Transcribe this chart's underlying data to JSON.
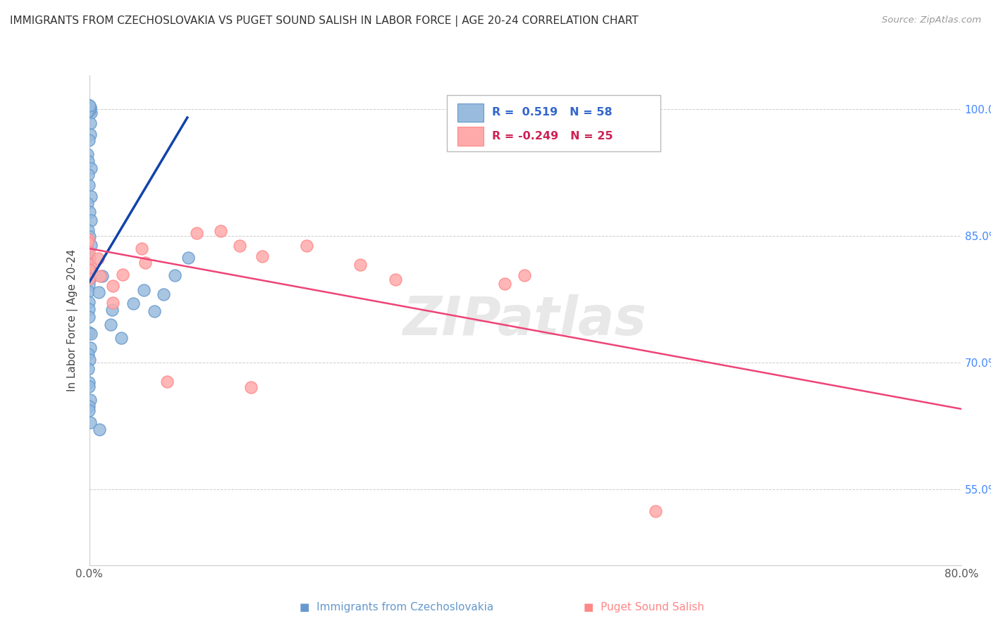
{
  "title": "IMMIGRANTS FROM CZECHOSLOVAKIA VS PUGET SOUND SALISH IN LABOR FORCE | AGE 20-24 CORRELATION CHART",
  "source": "Source: ZipAtlas.com",
  "ylabel": "In Labor Force | Age 20-24",
  "xlim": [
    0.0,
    0.8
  ],
  "ylim": [
    0.46,
    1.04
  ],
  "yticks": [
    0.55,
    0.7,
    0.85,
    1.0
  ],
  "yticklabels": [
    "55.0%",
    "70.0%",
    "85.0%",
    "100.0%"
  ],
  "blue_color": "#99BBDD",
  "pink_color": "#FFAAAA",
  "blue_edge_color": "#6699CC",
  "pink_edge_color": "#FF8888",
  "blue_line_color": "#1144AA",
  "pink_line_color": "#EE4477",
  "watermark": "ZIPatlas",
  "legend_R_blue": "R =  0.519",
  "legend_N_blue": "N = 58",
  "legend_R_pink": "R = -0.249",
  "legend_N_pink": "N = 25",
  "blue_scatter_x": [
    0.0,
    0.0,
    0.0,
    0.0,
    0.0,
    0.0,
    0.0,
    0.0,
    0.0,
    0.0,
    0.0,
    0.0,
    0.0,
    0.0,
    0.0,
    0.0,
    0.0,
    0.0,
    0.0,
    0.0,
    0.0,
    0.0,
    0.0,
    0.0,
    0.0,
    0.0,
    0.0,
    0.0,
    0.0,
    0.0,
    0.0,
    0.0,
    0.0,
    0.0,
    0.0,
    0.0,
    0.0,
    0.0,
    0.0,
    0.0,
    0.0,
    0.0,
    0.0,
    0.0,
    0.0,
    0.0,
    0.01,
    0.01,
    0.01,
    0.02,
    0.02,
    0.03,
    0.04,
    0.05,
    0.06,
    0.07,
    0.08,
    0.09
  ],
  "blue_scatter_y": [
    1.0,
    1.0,
    1.0,
    1.0,
    1.0,
    1.0,
    1.0,
    1.0,
    1.0,
    1.0,
    0.98,
    0.97,
    0.96,
    0.95,
    0.94,
    0.93,
    0.92,
    0.91,
    0.9,
    0.89,
    0.88,
    0.87,
    0.86,
    0.85,
    0.84,
    0.83,
    0.82,
    0.81,
    0.8,
    0.79,
    0.78,
    0.77,
    0.76,
    0.75,
    0.74,
    0.73,
    0.72,
    0.71,
    0.7,
    0.69,
    0.68,
    0.67,
    0.66,
    0.65,
    0.64,
    0.63,
    0.62,
    0.8,
    0.78,
    0.76,
    0.75,
    0.73,
    0.77,
    0.79,
    0.76,
    0.78,
    0.8,
    0.82
  ],
  "pink_scatter_x": [
    0.0,
    0.0,
    0.0,
    0.0,
    0.0,
    0.0,
    0.01,
    0.01,
    0.02,
    0.02,
    0.03,
    0.05,
    0.05,
    0.07,
    0.1,
    0.12,
    0.14,
    0.16,
    0.2,
    0.25,
    0.28,
    0.38,
    0.52,
    0.4,
    0.15
  ],
  "pink_scatter_y": [
    0.85,
    0.84,
    0.83,
    0.82,
    0.81,
    0.8,
    0.82,
    0.8,
    0.79,
    0.77,
    0.8,
    0.83,
    0.82,
    0.68,
    0.85,
    0.86,
    0.84,
    0.83,
    0.84,
    0.82,
    0.8,
    0.79,
    0.52,
    0.8,
    0.67
  ],
  "blue_trend_x": [
    0.0,
    0.09
  ],
  "blue_trend_y": [
    0.795,
    0.99
  ],
  "pink_trend_x": [
    0.0,
    0.8
  ],
  "pink_trend_y": [
    0.835,
    0.645
  ]
}
